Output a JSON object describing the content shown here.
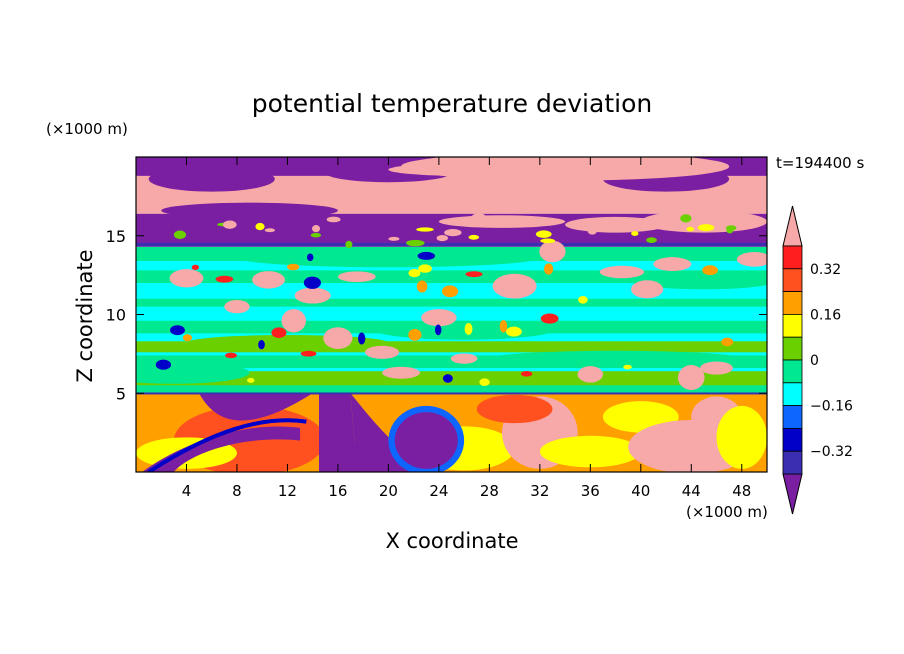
{
  "chart_data": {
    "type": "heatmap",
    "title": "potential temperature deviation",
    "xlabel": "X coordinate",
    "ylabel": "Z coordinate",
    "x_unit": "(×1000 m)",
    "y_unit": "(×1000 m)",
    "time_label": "t=194400 s",
    "xlim": [
      0,
      50
    ],
    "ylim": [
      0,
      20
    ],
    "x_ticks": [
      4,
      8,
      12,
      16,
      20,
      24,
      28,
      32,
      36,
      40,
      44,
      48
    ],
    "y_ticks": [
      5,
      10,
      15
    ],
    "colorbar": {
      "levels": [
        -0.4,
        -0.32,
        -0.24,
        -0.16,
        -0.08,
        0,
        0.08,
        0.16,
        0.24,
        0.32,
        0.4
      ],
      "tick_labels": [
        "0.32",
        "0.16",
        "0",
        "−0.16",
        "−0.32"
      ],
      "tick_values": [
        0.32,
        0.16,
        0,
        -0.16,
        -0.32
      ],
      "colors": [
        "#7a1fa2",
        "#3a2fb0",
        "#0000c8",
        "#0c66ff",
        "#00ffff",
        "#00e890",
        "#6ad000",
        "#ffff00",
        "#ffa000",
        "#ff5020",
        "#ff1f1f",
        "#f7a8a8"
      ]
    },
    "bands": [
      {
        "z": [
          19.5,
          20
        ],
        "level": -0.4,
        "note": "upper purple"
      },
      {
        "z": [
          16.3,
          19.5
        ],
        "level": 0.4,
        "note": "pink stratospheric layer"
      },
      {
        "z": [
          14.2,
          16.3
        ],
        "level": -0.4,
        "note": "purple layer"
      },
      {
        "z": [
          5.0,
          14.2
        ],
        "level": -0.12,
        "note": "cyan/green mid troposphere"
      },
      {
        "z": [
          0,
          5.0
        ],
        "level": 0.16,
        "note": "turbulent boundary layer"
      }
    ]
  }
}
